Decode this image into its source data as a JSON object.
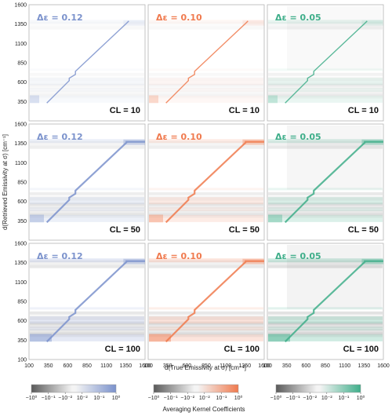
{
  "chart_data": {
    "type": "heatmap",
    "xlabel": "d(True Emissivity at σ) [cm⁻¹]",
    "ylabel": "d(Retrieved Emissivity at σ) [cm⁻¹]",
    "xlim": [
      100,
      1600
    ],
    "ylim": [
      100,
      1600
    ],
    "xticks": [
      "100",
      "350",
      "600",
      "850",
      "1100",
      "1350",
      "1600"
    ],
    "yticks": [
      "350",
      "600",
      "850",
      "1100",
      "1350",
      "1600"
    ],
    "columns": [
      {
        "delta_label": "Δε = 0.12",
        "color": "#7b92cc"
      },
      {
        "delta_label": "Δε = 0.10",
        "color": "#f07a4e"
      },
      {
        "delta_label": "Δε = 0.05",
        "color": "#3fae8a"
      }
    ],
    "rows": [
      {
        "cl_label": "CL = 10"
      },
      {
        "cl_label": "CL = 50"
      },
      {
        "cl_label": "CL = 100"
      }
    ],
    "colorbar": {
      "label": "Averaging Kernel Coefficients",
      "ticks": [
        "−10⁰",
        "−10⁻¹",
        "−10⁻²",
        "10⁻²",
        "10⁻¹",
        "10⁰"
      ]
    }
  }
}
